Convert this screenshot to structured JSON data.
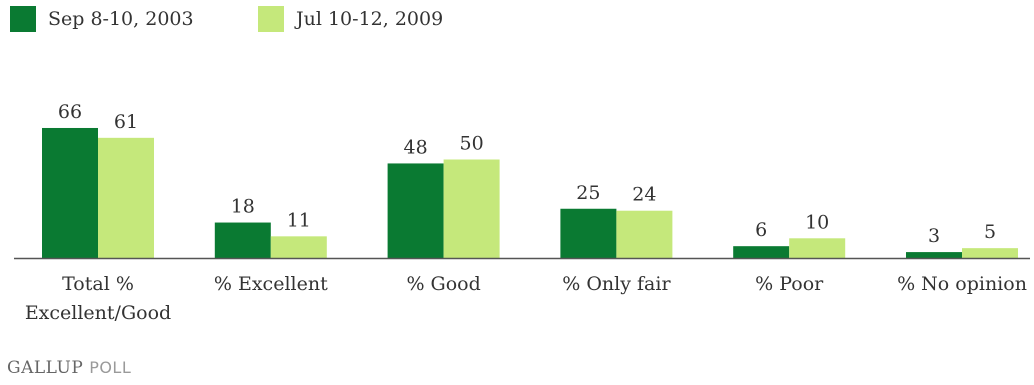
{
  "legend": {
    "series": [
      {
        "name": "Sep 8-10, 2003",
        "color": "#0a7a32"
      },
      {
        "name": "Jul 10-12, 2009",
        "color": "#c5e87b"
      }
    ]
  },
  "branding": {
    "gallup": "GALLUP",
    "poll": "POLL"
  },
  "chart_data": {
    "type": "bar",
    "categories": [
      [
        "Total %",
        "Excellent/Good"
      ],
      [
        "% Excellent"
      ],
      [
        "% Good"
      ],
      [
        "% Only fair"
      ],
      [
        "% Poor"
      ],
      [
        "% No opinion"
      ]
    ],
    "series": [
      {
        "name": "Sep 8-10, 2003",
        "values": [
          66,
          18,
          48,
          25,
          6,
          3
        ],
        "color": "#0a7a32"
      },
      {
        "name": "Jul 10-12, 2009",
        "values": [
          61,
          11,
          50,
          24,
          10,
          5
        ],
        "color": "#c5e87b"
      }
    ],
    "title": "",
    "xlabel": "",
    "ylabel": "",
    "ylim": [
      0,
      70
    ],
    "grid": false,
    "legend_position": "top-left",
    "data_labels": true
  }
}
